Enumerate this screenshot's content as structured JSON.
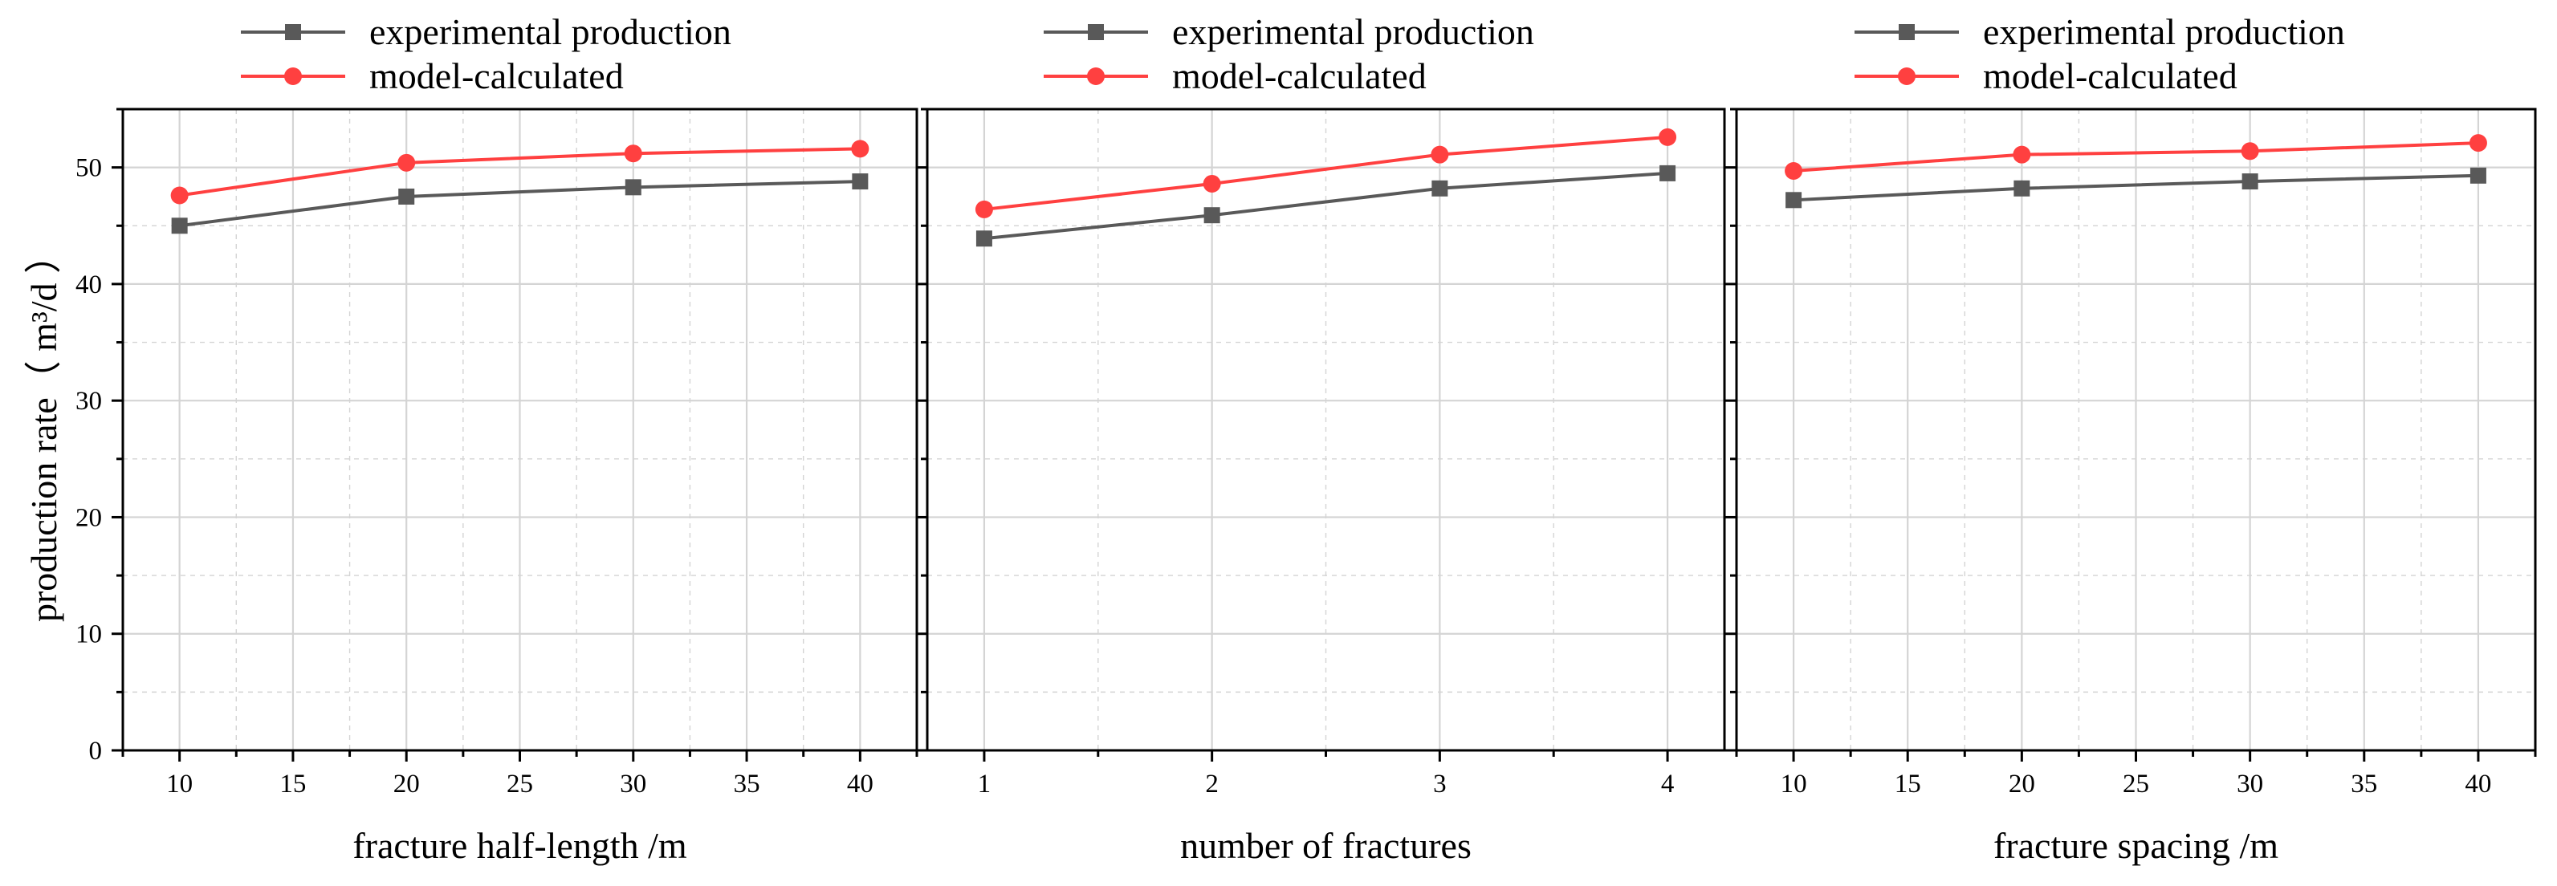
{
  "colors": {
    "experimental": "#595959",
    "model": "#ff4040",
    "grid": "#d4d4d4",
    "axis": "#000000"
  },
  "y_axis": {
    "label": "production rate（ m³/d ）",
    "ylim": [
      0,
      55
    ],
    "ticks": [
      "0",
      "10",
      "20",
      "30",
      "40",
      "50"
    ]
  },
  "legend_labels": [
    "experimental production",
    "model-calculated"
  ],
  "chart_data": [
    {
      "type": "line",
      "xlabel": "fracture half-length /m",
      "ylabel": "production rate（ m³/d ）",
      "xlim": [
        7.5,
        42.5
      ],
      "ylim": [
        0,
        55
      ],
      "x_ticks": [
        "10",
        "15",
        "20",
        "25",
        "30",
        "35",
        "40"
      ],
      "grid": true,
      "legend_position": "top",
      "x": [
        10,
        20,
        30,
        40
      ],
      "series": [
        {
          "name": "experimental production",
          "values": [
            45.0,
            47.5,
            48.3,
            48.8
          ],
          "marker": "square",
          "color": "#595959"
        },
        {
          "name": "model-calculated",
          "values": [
            47.6,
            50.4,
            51.2,
            51.6
          ],
          "marker": "circle",
          "color": "#ff4040"
        }
      ]
    },
    {
      "type": "line",
      "xlabel": "number of fractures",
      "ylabel": "",
      "xlim": [
        0.75,
        4.25
      ],
      "ylim": [
        0,
        55
      ],
      "x_ticks": [
        "1",
        "2",
        "3",
        "4"
      ],
      "grid": true,
      "legend_position": "top",
      "x": [
        1,
        2,
        3,
        4
      ],
      "series": [
        {
          "name": "experimental production",
          "values": [
            43.9,
            45.9,
            48.2,
            49.5
          ],
          "marker": "square",
          "color": "#595959"
        },
        {
          "name": "model-calculated",
          "values": [
            46.4,
            48.6,
            51.1,
            52.6
          ],
          "marker": "circle",
          "color": "#ff4040"
        }
      ]
    },
    {
      "type": "line",
      "xlabel": "fracture spacing /m",
      "ylabel": "",
      "xlim": [
        7.5,
        42.5
      ],
      "ylim": [
        0,
        55
      ],
      "x_ticks": [
        "10",
        "15",
        "20",
        "25",
        "30",
        "35",
        "40"
      ],
      "grid": true,
      "legend_position": "top",
      "x": [
        10,
        20,
        30,
        40
      ],
      "series": [
        {
          "name": "experimental production",
          "values": [
            47.2,
            48.2,
            48.8,
            49.3
          ],
          "marker": "square",
          "color": "#595959"
        },
        {
          "name": "model-calculated",
          "values": [
            49.7,
            51.1,
            51.4,
            52.1
          ],
          "marker": "circle",
          "color": "#ff4040"
        }
      ]
    }
  ]
}
